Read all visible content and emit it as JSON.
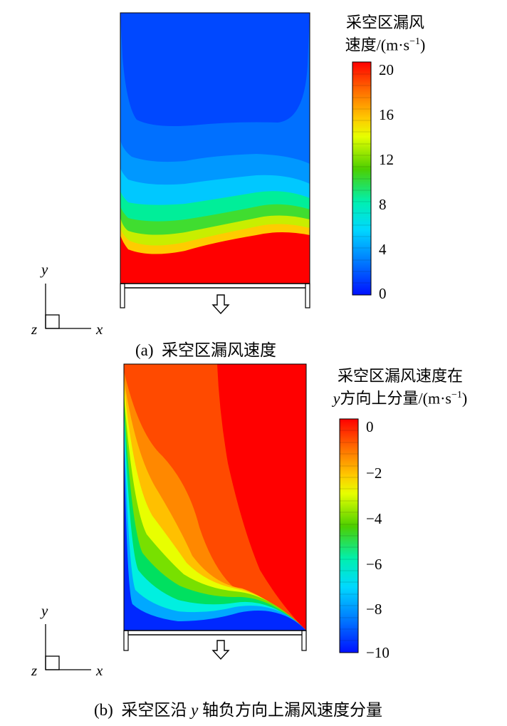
{
  "panel_a": {
    "caption_label": "(a)",
    "caption_text": "采空区漏风速度",
    "colorbar_title_line1": "采空区漏风",
    "colorbar_title_line2": "速度/(m·s",
    "colorbar_title_sup": "−1",
    "colorbar_title_close": ")",
    "colorbar_ticks": [
      "20",
      "16",
      "12",
      "8",
      "4",
      "0"
    ],
    "colorbar_range": [
      0,
      20
    ],
    "axis_y": "y",
    "axis_x": "x",
    "axis_z": "z"
  },
  "panel_b": {
    "caption_label": "(b)",
    "caption_text_1": "采空区沿",
    "caption_var": "y",
    "caption_text_2": "轴负方向上漏风速度分量",
    "colorbar_title_line1": "采空区漏风速度在",
    "colorbar_title_var": "y",
    "colorbar_title_line2": "方向上分量/(m·s",
    "colorbar_title_sup": "−1",
    "colorbar_title_close": ")",
    "colorbar_ticks": [
      "0",
      "−2",
      "−4",
      "−6",
      "−8",
      "−10"
    ],
    "colorbar_range": [
      -10,
      0
    ],
    "axis_y": "y",
    "axis_x": "x",
    "axis_z": "z"
  },
  "colors": {
    "red": "#ff0000",
    "orange_red": "#ff4400",
    "orange": "#ff8800",
    "yellow": "#ffdd00",
    "green": "#22cc00",
    "cyan": "#00ffee",
    "blue": "#0033ff"
  }
}
